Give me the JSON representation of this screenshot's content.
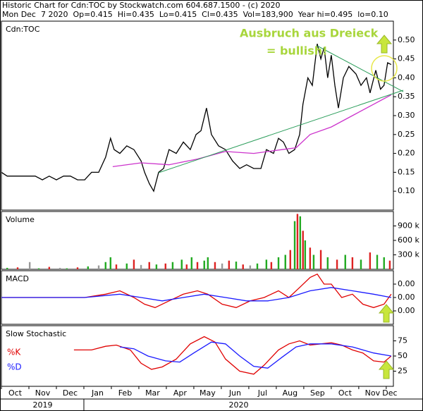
{
  "header": {
    "line1": "Historic Chart for Cdn:TOC by Stockwatch.com 604.687.1500 - (c) 2020",
    "line2": "Mon Dec  7 2020  Op=0.415  Hi=0.435  Lo=0.415  Cl=0.435  Vol=183,900  Year hi=0.495  lo=0.10"
  },
  "chart_data": [
    {
      "type": "line",
      "label": "Cdn:TOC",
      "annotations": [
        "Ausbruch aus Dreieck",
        "= bullish!"
      ],
      "xlim": [
        0,
        14.26
      ],
      "ylim": [
        0.05,
        0.55
      ],
      "yticks": [
        {
          "value": 0.1,
          "label": "0.10"
        },
        0.15,
        {
          "value": 0.2,
          "label": "0.20"
        },
        0.25,
        {
          "value": 0.3,
          "label": "0.30"
        },
        0.35,
        {
          "value": 0.4,
          "label": "0.40"
        },
        0.45,
        {
          "value": 0.5,
          "label": "0.50"
        }
      ],
      "series": [
        {
          "color": "#000000",
          "x": [
            0,
            0.21,
            0.46,
            0.72,
            0.97,
            1.23,
            1.49,
            1.74,
            2.0,
            2.26,
            2.51,
            2.77,
            3.03,
            3.28,
            3.54,
            3.79,
            3.97,
            4.1,
            4.31,
            4.56,
            4.82,
            5.08,
            5.21,
            5.38,
            5.54,
            5.72,
            5.9,
            6.1,
            6.36,
            6.62,
            6.87,
            7.08,
            7.26,
            7.46,
            7.64,
            7.9,
            8.15,
            8.41,
            8.67,
            8.92,
            9.18,
            9.44,
            9.64,
            9.9,
            10.08,
            10.26,
            10.46,
            10.67,
            10.85,
            10.97,
            11.15,
            11.31,
            11.49,
            11.62,
            11.74,
            11.87,
            12.0,
            12.13,
            12.26,
            12.44,
            12.64,
            12.9,
            13.08,
            13.28,
            13.41,
            13.62,
            13.79,
            13.92,
            14.05,
            14.18
          ],
          "values": [
            0.15,
            0.14,
            0.14,
            0.14,
            0.14,
            0.14,
            0.13,
            0.14,
            0.13,
            0.14,
            0.14,
            0.13,
            0.13,
            0.15,
            0.15,
            0.19,
            0.24,
            0.21,
            0.2,
            0.22,
            0.21,
            0.18,
            0.15,
            0.12,
            0.1,
            0.15,
            0.16,
            0.21,
            0.2,
            0.23,
            0.21,
            0.25,
            0.26,
            0.32,
            0.25,
            0.22,
            0.21,
            0.18,
            0.16,
            0.17,
            0.16,
            0.16,
            0.21,
            0.2,
            0.24,
            0.23,
            0.2,
            0.21,
            0.25,
            0.33,
            0.4,
            0.38,
            0.49,
            0.45,
            0.48,
            0.4,
            0.46,
            0.38,
            0.32,
            0.4,
            0.43,
            0.41,
            0.38,
            0.4,
            0.36,
            0.42,
            0.37,
            0.38,
            0.44,
            0.435
          ]
        },
        {
          "color": "#cc33cc",
          "x": [
            4.05,
            5.08,
            6.1,
            7.13,
            8.15,
            9.18,
            10.21,
            10.72,
            11.23,
            12.0,
            12.77,
            13.54,
            14.18
          ],
          "values": [
            0.165,
            0.175,
            0.17,
            0.185,
            0.205,
            0.2,
            0.21,
            0.215,
            0.25,
            0.27,
            0.3,
            0.33,
            0.355
          ]
        }
      ]
    },
    {
      "type": "bar",
      "label": "Volume",
      "xlim": [
        0,
        14.26
      ],
      "ylim": [
        0,
        1200000
      ],
      "yticks": [
        {
          "value": 300000,
          "label": "300 k"
        },
        {
          "value": 600000,
          "label": "600 k"
        },
        {
          "value": 900000,
          "label": "900 k"
        }
      ],
      "series": [
        {
          "x": [
            0.21,
            0.59,
            1.03,
            1.36,
            1.74,
            2.13,
            2.38,
            2.77,
            3.15,
            3.54,
            3.79,
            3.97,
            4.18,
            4.56,
            4.82,
            5.08,
            5.38,
            5.64,
            5.97,
            6.23,
            6.56,
            6.74,
            6.92,
            7.13,
            7.38,
            7.51,
            7.77,
            8.03,
            8.28,
            8.54,
            8.79,
            9.05,
            9.31,
            9.64,
            9.82,
            10.08,
            10.33,
            10.51,
            10.67,
            10.77,
            10.87,
            10.97,
            11.05,
            11.23,
            11.36,
            11.62,
            11.87,
            12.21,
            12.51,
            12.77,
            13.08,
            13.41,
            13.67,
            13.92,
            14.13
          ],
          "values": [
            30000,
            40000,
            150000,
            20000,
            50000,
            30000,
            20000,
            40000,
            60000,
            80000,
            150000,
            250000,
            100000,
            120000,
            200000,
            90000,
            150000,
            100000,
            120000,
            150000,
            200000,
            100000,
            250000,
            150000,
            180000,
            250000,
            150000,
            120000,
            180000,
            160000,
            100000,
            80000,
            120000,
            200000,
            150000,
            250000,
            300000,
            400000,
            1000000,
            1150000,
            1100000,
            800000,
            600000,
            450000,
            300000,
            400000,
            250000,
            200000,
            300000,
            250000,
            200000,
            350000,
            300000,
            250000,
            180000
          ],
          "colors": [
            "#22aa22",
            "#dd2222",
            "#999999",
            "#22aa22",
            "#dd2222",
            "#999999",
            "#22aa22",
            "#dd2222",
            "#22aa22",
            "#999999",
            "#22aa22",
            "#22aa22",
            "#dd2222",
            "#22aa22",
            "#dd2222",
            "#999999",
            "#dd2222",
            "#22aa22",
            "#dd2222",
            "#22aa22",
            "#22aa22",
            "#dd2222",
            "#22aa22",
            "#dd2222",
            "#22aa22",
            "#22aa22",
            "#dd2222",
            "#999999",
            "#dd2222",
            "#22aa22",
            "#dd2222",
            "#999999",
            "#22aa22",
            "#22aa22",
            "#dd2222",
            "#22aa22",
            "#22aa22",
            "#dd2222",
            "#22aa22",
            "#dd2222",
            "#22aa22",
            "#dd2222",
            "#22aa22",
            "#dd2222",
            "#22aa22",
            "#dd2222",
            "#22aa22",
            "#dd2222",
            "#22aa22",
            "#dd2222",
            "#22aa22",
            "#dd2222",
            "#22aa22",
            "#22aa22",
            "#dd2222"
          ]
        }
      ]
    },
    {
      "type": "line",
      "label": "MACD",
      "xlim": [
        0,
        14.26
      ],
      "ylim": [
        -0.008,
        0.008
      ],
      "yticks": [
        {
          "value": 0.004,
          "label": "0.00"
        },
        {
          "value": 0,
          "label": "0.00"
        },
        {
          "value": -0.004,
          "label": "0.00"
        }
      ],
      "series": [
        {
          "color": "#e00000",
          "x": [
            0,
            1.49,
            3.03,
            3.79,
            4.31,
            4.82,
            5.21,
            5.59,
            6.1,
            6.62,
            7.13,
            7.51,
            8.03,
            8.54,
            9.05,
            9.56,
            10.08,
            10.46,
            10.85,
            11.23,
            11.49,
            11.74,
            12.0,
            12.38,
            12.77,
            13.15,
            13.54,
            13.92,
            14.18
          ],
          "values": [
            0,
            0,
            0,
            0.001,
            0.002,
            0,
            -0.002,
            -0.003,
            -0.001,
            0.001,
            0.002,
            0.001,
            -0.002,
            -0.003,
            -0.001,
            0,
            0.002,
            0,
            0.003,
            0.006,
            0.007,
            0.004,
            0.004,
            0,
            0.001,
            -0.002,
            -0.003,
            -0.002,
            0.001
          ]
        },
        {
          "color": "#1a1aff",
          "x": [
            0,
            3.03,
            4.31,
            5.08,
            5.85,
            6.62,
            7.38,
            8.15,
            8.92,
            9.69,
            10.46,
            11.23,
            12.0,
            12.77,
            13.54,
            14.18
          ],
          "values": [
            0,
            0,
            0.001,
            0,
            -0.001,
            0,
            0.001,
            0,
            -0.001,
            -0.001,
            0,
            0.002,
            0.003,
            0.002,
            0.001,
            0
          ]
        }
      ]
    },
    {
      "type": "line",
      "label": "Slow Stochastic",
      "xlim": [
        0,
        14.26
      ],
      "ylim": [
        0,
        100
      ],
      "yticks": [
        25,
        50,
        75
      ],
      "xticks": [
        {
          "value": 0,
          "label": "Oct"
        },
        {
          "value": 1,
          "label": "Nov"
        },
        {
          "value": 2,
          "label": "Dec"
        },
        {
          "value": 3,
          "label": "Jan"
        },
        {
          "value": 4,
          "label": "Feb"
        },
        {
          "value": 5,
          "label": "Mar"
        },
        {
          "value": 6,
          "label": "Apr"
        },
        {
          "value": 7,
          "label": "May"
        },
        {
          "value": 8,
          "label": "Jun"
        },
        {
          "value": 9,
          "label": "Jul"
        },
        {
          "value": 10,
          "label": "Aug"
        },
        {
          "value": 11,
          "label": "Sep"
        },
        {
          "value": 12,
          "label": "Oct"
        },
        {
          "value": 13,
          "label": "Nov"
        },
        {
          "value": 14,
          "label": "Dec"
        }
      ],
      "years": [
        {
          "value": 0,
          "label": "2019"
        },
        {
          "value": 3,
          "label": "2020"
        }
      ],
      "series": [
        {
          "name": "%K",
          "color": "#e00000",
          "x": [
            2.64,
            3.28,
            3.79,
            4.18,
            4.69,
            5.08,
            5.46,
            5.85,
            6.36,
            6.87,
            7.38,
            7.77,
            8.15,
            8.67,
            9.18,
            9.56,
            10.08,
            10.46,
            10.85,
            11.23,
            11.62,
            12.0,
            12.38,
            12.77,
            13.15,
            13.54,
            13.92,
            14.18
          ],
          "values": [
            60,
            60,
            66,
            68,
            60,
            38,
            28,
            32,
            45,
            70,
            82,
            73,
            45,
            25,
            20,
            35,
            60,
            70,
            75,
            68,
            70,
            72,
            68,
            60,
            55,
            42,
            40,
            50
          ]
        },
        {
          "name": "%D",
          "color": "#1a1aff",
          "x": [
            4.31,
            4.82,
            5.33,
            5.97,
            6.49,
            7.0,
            7.64,
            8.15,
            8.67,
            9.18,
            9.69,
            10.21,
            10.72,
            11.23,
            12.0,
            12.77,
            13.54,
            14.18
          ],
          "values": [
            65,
            62,
            50,
            42,
            40,
            55,
            73,
            70,
            50,
            33,
            30,
            48,
            65,
            70,
            70,
            65,
            55,
            50
          ]
        }
      ]
    }
  ]
}
